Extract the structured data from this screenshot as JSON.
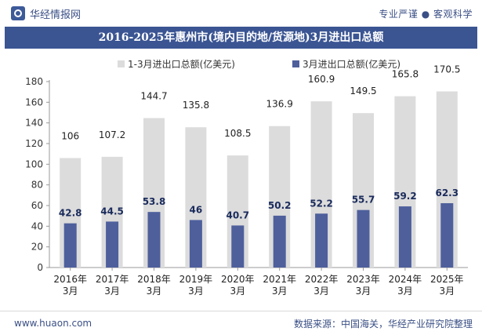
{
  "header": {
    "brand_name": "华经情报网",
    "slogan": "专业严谨 ● 客观科学"
  },
  "footer": {
    "url": "www.huaon.com",
    "source": "数据来源：中国海关，华经产业研究院整理"
  },
  "chart_data": {
    "type": "bar",
    "title": "2016-2025年惠州市(境内目的地/货源地)3月进出口总额",
    "categories": [
      "2016年\n3月",
      "2017年\n3月",
      "2018年\n3月",
      "2019年\n3月",
      "2020年\n3月",
      "2021年\n3月",
      "2022年\n3月",
      "2023年\n3月",
      "2024年\n3月",
      "2025年\n3月"
    ],
    "series": [
      {
        "name": "1-3月进出口总额(亿美元)",
        "values": [
          106,
          107.2,
          144.7,
          135.8,
          108.5,
          136.9,
          160.9,
          149.5,
          165.8,
          170.5
        ],
        "labels": [
          "106",
          "107.2",
          "144.7",
          "135.8",
          "108.5",
          "136.9",
          "160.9",
          "149.5",
          "165.8",
          "170.5"
        ],
        "color": "#dcdcdc"
      },
      {
        "name": "3月进出口总额(亿美元)",
        "values": [
          42.8,
          44.5,
          53.8,
          46,
          40.7,
          50.2,
          52.2,
          55.7,
          59.2,
          62.3
        ],
        "labels": [
          "42.8",
          "44.5",
          "53.8",
          "46",
          "40.7",
          "50.2",
          "52.2",
          "55.7",
          "59.2",
          "62.3"
        ],
        "color": "#4e5f9c"
      }
    ],
    "yticks": [
      "0",
      "20",
      "40",
      "60",
      "80",
      "100",
      "120",
      "140",
      "160",
      "180"
    ],
    "ylim": [
      0,
      180
    ],
    "xlabel": "",
    "ylabel": "",
    "legend_position": "top",
    "grid": false
  }
}
